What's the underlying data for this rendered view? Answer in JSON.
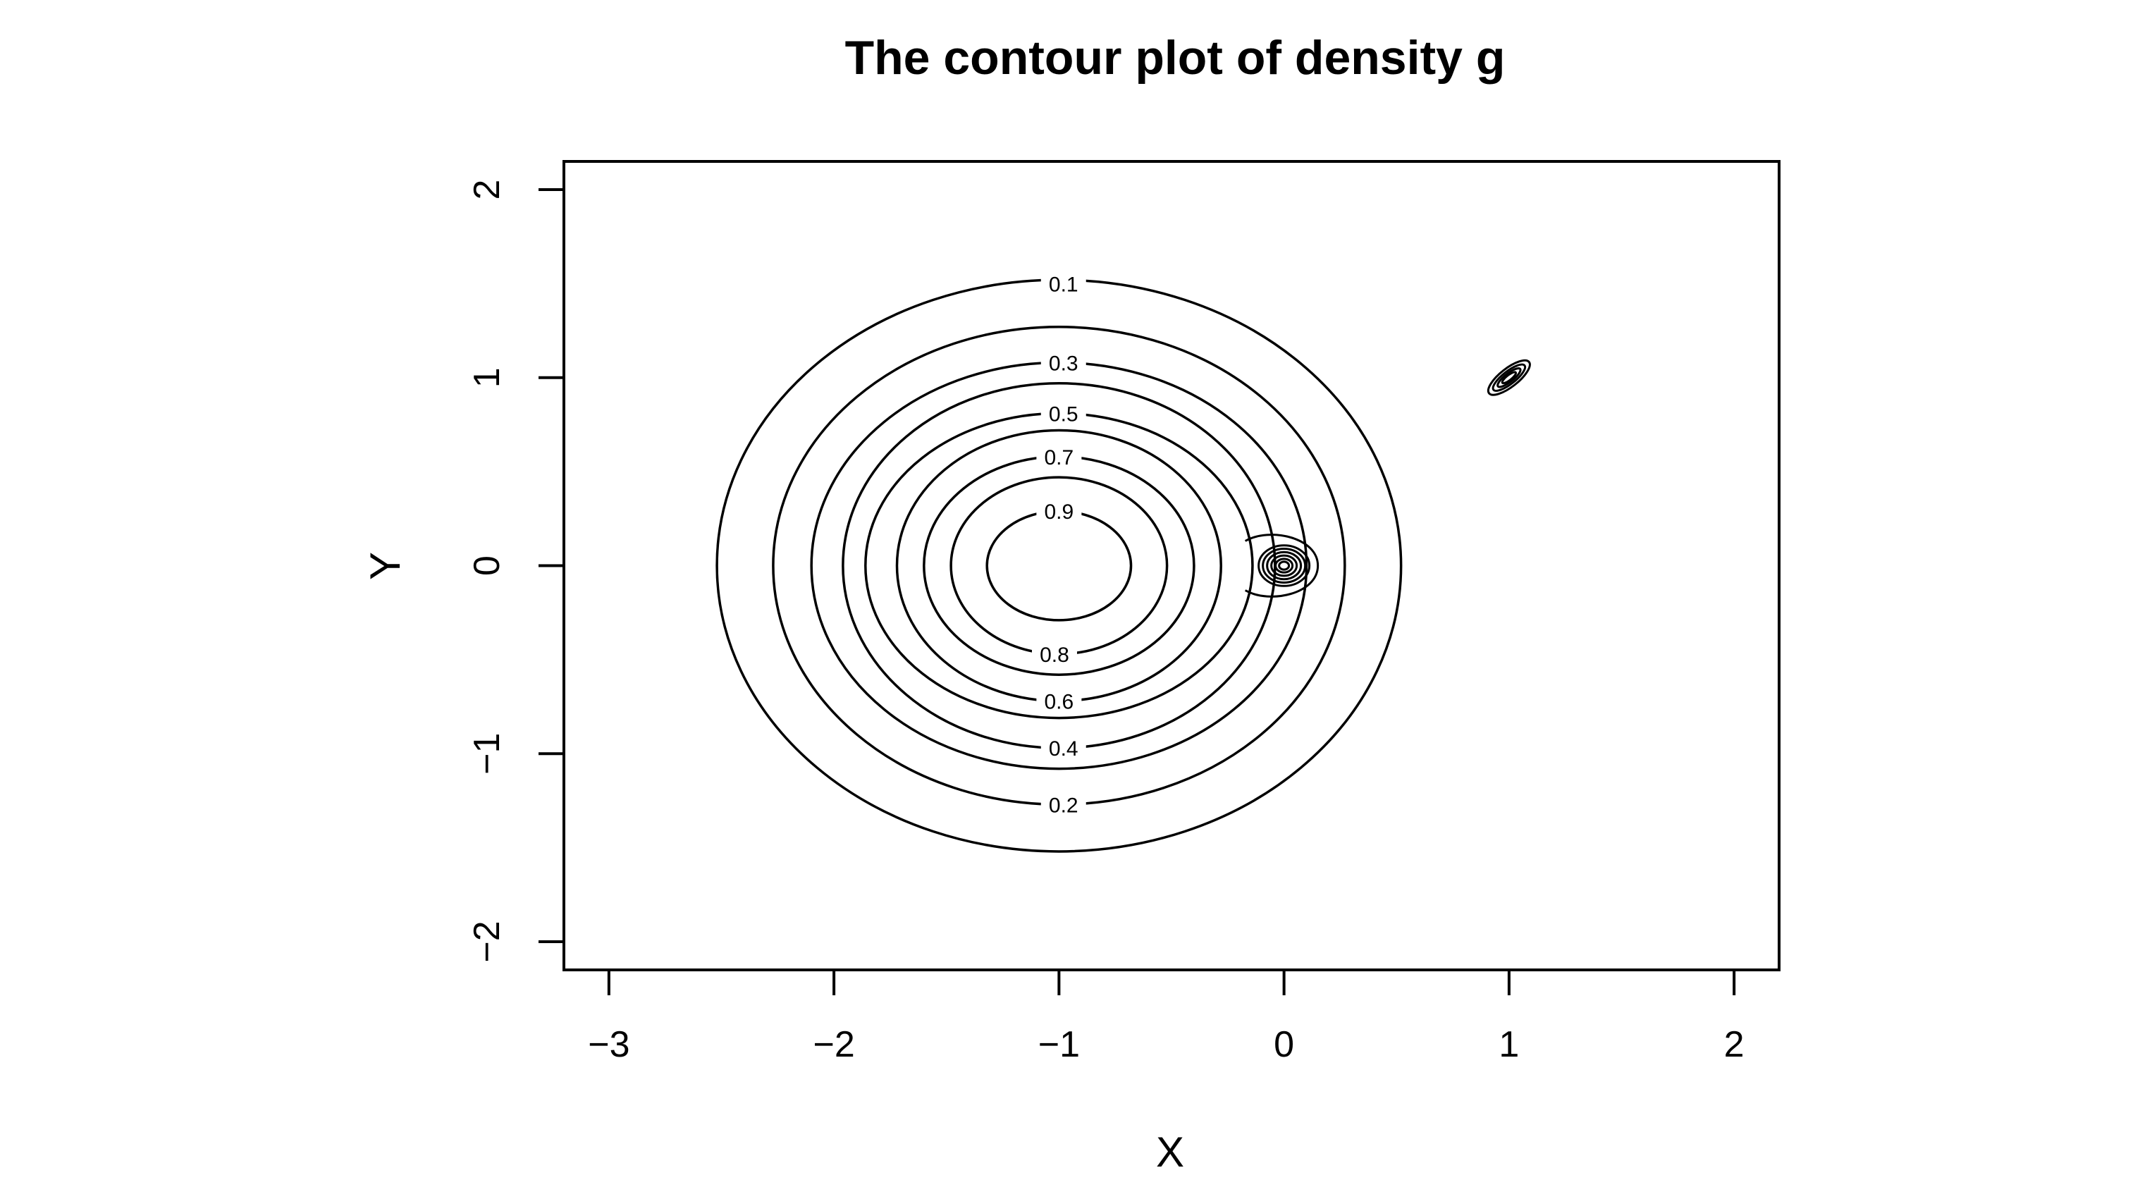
{
  "chart_data": {
    "type": "contour",
    "title": "The contour plot of density g",
    "xlabel": "X",
    "ylabel": "Y",
    "xlim": [
      -3.2,
      2.2
    ],
    "ylim": [
      -2.15,
      2.15
    ],
    "x_ticks": [
      -3,
      -2,
      -1,
      0,
      1,
      2
    ],
    "x_tick_labels": [
      "−3",
      "−2",
      "−1",
      "0",
      "1",
      "2"
    ],
    "y_ticks": [
      -2,
      -1,
      0,
      1,
      2
    ],
    "y_tick_labels": [
      "−2",
      "−1",
      "0",
      "1",
      "2"
    ],
    "grid": false,
    "main_mode": {
      "center": [
        -1.0,
        0.0
      ]
    },
    "contours": [
      {
        "level": 0.1,
        "label": "0.1",
        "rx": 1.52,
        "ry": 1.52,
        "label_pos": [
          -0.98,
          1.5
        ]
      },
      {
        "level": 0.2,
        "label": "0.2",
        "rx": 1.27,
        "ry": 1.27,
        "label_pos": [
          -0.98,
          -1.27
        ]
      },
      {
        "level": 0.3,
        "label": "0.3",
        "rx": 1.1,
        "ry": 1.08,
        "label_pos": [
          -0.98,
          1.08
        ]
      },
      {
        "level": 0.4,
        "label": "0.4",
        "rx": 0.96,
        "ry": 0.97,
        "label_pos": [
          -0.98,
          -0.97
        ]
      },
      {
        "level": 0.5,
        "label": "0.5",
        "rx": 0.86,
        "ry": 0.81,
        "label_pos": [
          -0.98,
          0.81
        ]
      },
      {
        "level": 0.6,
        "label": "0.6",
        "rx": 0.72,
        "ry": 0.72,
        "label_pos": [
          -1.0,
          -0.72
        ]
      },
      {
        "level": 0.7,
        "label": "0.7",
        "rx": 0.6,
        "ry": 0.58,
        "label_pos": [
          -1.0,
          0.58
        ]
      },
      {
        "level": 0.8,
        "label": "0.8",
        "rx": 0.48,
        "ry": 0.47,
        "label_pos": [
          -1.02,
          -0.47
        ]
      },
      {
        "level": 0.9,
        "label": "0.9",
        "rx": 0.32,
        "ry": 0.29,
        "label_pos": [
          -1.0,
          0.29
        ]
      }
    ],
    "spikes": [
      {
        "center": [
          0.0,
          0.0
        ]
      },
      {
        "center": [
          1.0,
          1.0
        ]
      }
    ]
  }
}
